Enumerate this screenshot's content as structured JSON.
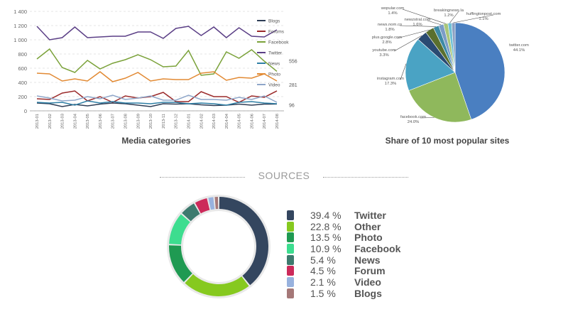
{
  "chart_data": [
    {
      "type": "line",
      "title": "Media categories",
      "x": [
        "2013-01",
        "2013-02",
        "2013-03",
        "2013-04",
        "2013-05",
        "2013-06",
        "2013-07",
        "2013-08",
        "2013-09",
        "2013-10",
        "2013-11",
        "2013-12",
        "2014-01",
        "2014-02",
        "2014-03",
        "2014-04",
        "2014-05",
        "2014-06",
        "2014-07",
        "2014-08"
      ],
      "ylim": [
        0,
        1400
      ],
      "yticks": [
        "0",
        "200",
        "400",
        "600",
        "800",
        "1 000",
        "1 200",
        "1 400"
      ],
      "series": [
        {
          "name": "Blogs",
          "color": "#2e3d55",
          "values": [
            110,
            100,
            60,
            90,
            70,
            95,
            110,
            100,
            80,
            60,
            100,
            95,
            100,
            85,
            75,
            80,
            95,
            80,
            95,
            96
          ]
        },
        {
          "name": "Forums",
          "color": "#9b2a2a",
          "values": [
            170,
            160,
            250,
            280,
            140,
            200,
            120,
            210,
            180,
            200,
            260,
            130,
            130,
            270,
            200,
            200,
            120,
            210,
            190,
            281
          ]
        },
        {
          "name": "Facebook",
          "color": "#7ba23a",
          "values": [
            730,
            870,
            610,
            540,
            710,
            590,
            670,
            720,
            790,
            720,
            620,
            630,
            850,
            500,
            520,
            830,
            740,
            860,
            700,
            556
          ]
        },
        {
          "name": "Twitter",
          "color": "#5b3f86",
          "values": [
            1190,
            1000,
            1030,
            1180,
            1030,
            1040,
            1050,
            1050,
            1110,
            1110,
            1020,
            1160,
            1190,
            1060,
            1180,
            1030,
            1170,
            1050,
            1040,
            1140
          ]
        },
        {
          "name": "News",
          "color": "#2f7fa5",
          "values": [
            120,
            110,
            120,
            80,
            140,
            110,
            130,
            110,
            110,
            100,
            120,
            120,
            100,
            110,
            100,
            80,
            120,
            130,
            110,
            100
          ]
        },
        {
          "name": "Photo",
          "color": "#e28a34",
          "values": [
            530,
            520,
            420,
            450,
            420,
            550,
            410,
            460,
            540,
            420,
            450,
            440,
            440,
            530,
            550,
            430,
            470,
            460,
            520,
            420
          ]
        },
        {
          "name": "Video",
          "color": "#8ea6c9",
          "values": [
            210,
            180,
            140,
            150,
            200,
            170,
            220,
            160,
            180,
            210,
            150,
            150,
            220,
            160,
            160,
            150,
            190,
            160,
            210,
            120
          ]
        }
      ],
      "end_labels": [
        "556",
        "281",
        "96"
      ]
    },
    {
      "type": "pie",
      "title": "Share of 10 most popular sites",
      "slices": [
        {
          "label": "twitter.com",
          "pct": "44.1%",
          "value": 44.1,
          "color": "#4a7fc1"
        },
        {
          "label": "facebook.com",
          "pct": "24.0%",
          "value": 24.0,
          "color": "#8fb85c"
        },
        {
          "label": "instagram.com",
          "pct": "17.3%",
          "value": 17.3,
          "color": "#4aa3c4"
        },
        {
          "label": "youtube.com",
          "pct": "3.3%",
          "value": 3.3,
          "color": "#2a4a72"
        },
        {
          "label": "plus.google.com",
          "pct": "2.8%",
          "value": 2.8,
          "color": "#5a6f2e"
        },
        {
          "label": "news.nom.co",
          "pct": "1.8%",
          "value": 1.8,
          "color": "#3d8aa6"
        },
        {
          "label": "newzstral.com",
          "pct": "1.6%",
          "value": 1.6,
          "color": "#7b9cc7"
        },
        {
          "label": "wopular.com",
          "pct": "1.4%",
          "value": 1.4,
          "color": "#a9c67a"
        },
        {
          "label": "breakingnews.la",
          "pct": "1.2%",
          "value": 1.2,
          "color": "#6fc0d6"
        },
        {
          "label": "huffingtonpost.com",
          "pct": "1.1%",
          "value": 1.1,
          "color": "#8b9fc2"
        }
      ]
    },
    {
      "type": "pie",
      "subtype": "donut",
      "title": "SOURCES",
      "slices": [
        {
          "label": "Twitter",
          "pct": "39.4 %",
          "value": 39.4,
          "color": "#34465f"
        },
        {
          "label": "Other",
          "pct": "22.8 %",
          "value": 22.8,
          "color": "#86c91f"
        },
        {
          "label": "Photo",
          "pct": "13.5 %",
          "value": 13.5,
          "color": "#1f9a52"
        },
        {
          "label": "Facebook",
          "pct": "10.9 %",
          "value": 10.9,
          "color": "#3ddd8f"
        },
        {
          "label": "News",
          "pct": "5.4 %",
          "value": 5.4,
          "color": "#3d7a6e"
        },
        {
          "label": "Forum",
          "pct": "4.5 %",
          "value": 4.5,
          "color": "#cc2a5a"
        },
        {
          "label": "Video",
          "pct": "2.1 %",
          "value": 2.1,
          "color": "#98b2de"
        },
        {
          "label": "Blogs",
          "pct": "1.5 %",
          "value": 1.5,
          "color": "#a57878"
        }
      ]
    }
  ]
}
